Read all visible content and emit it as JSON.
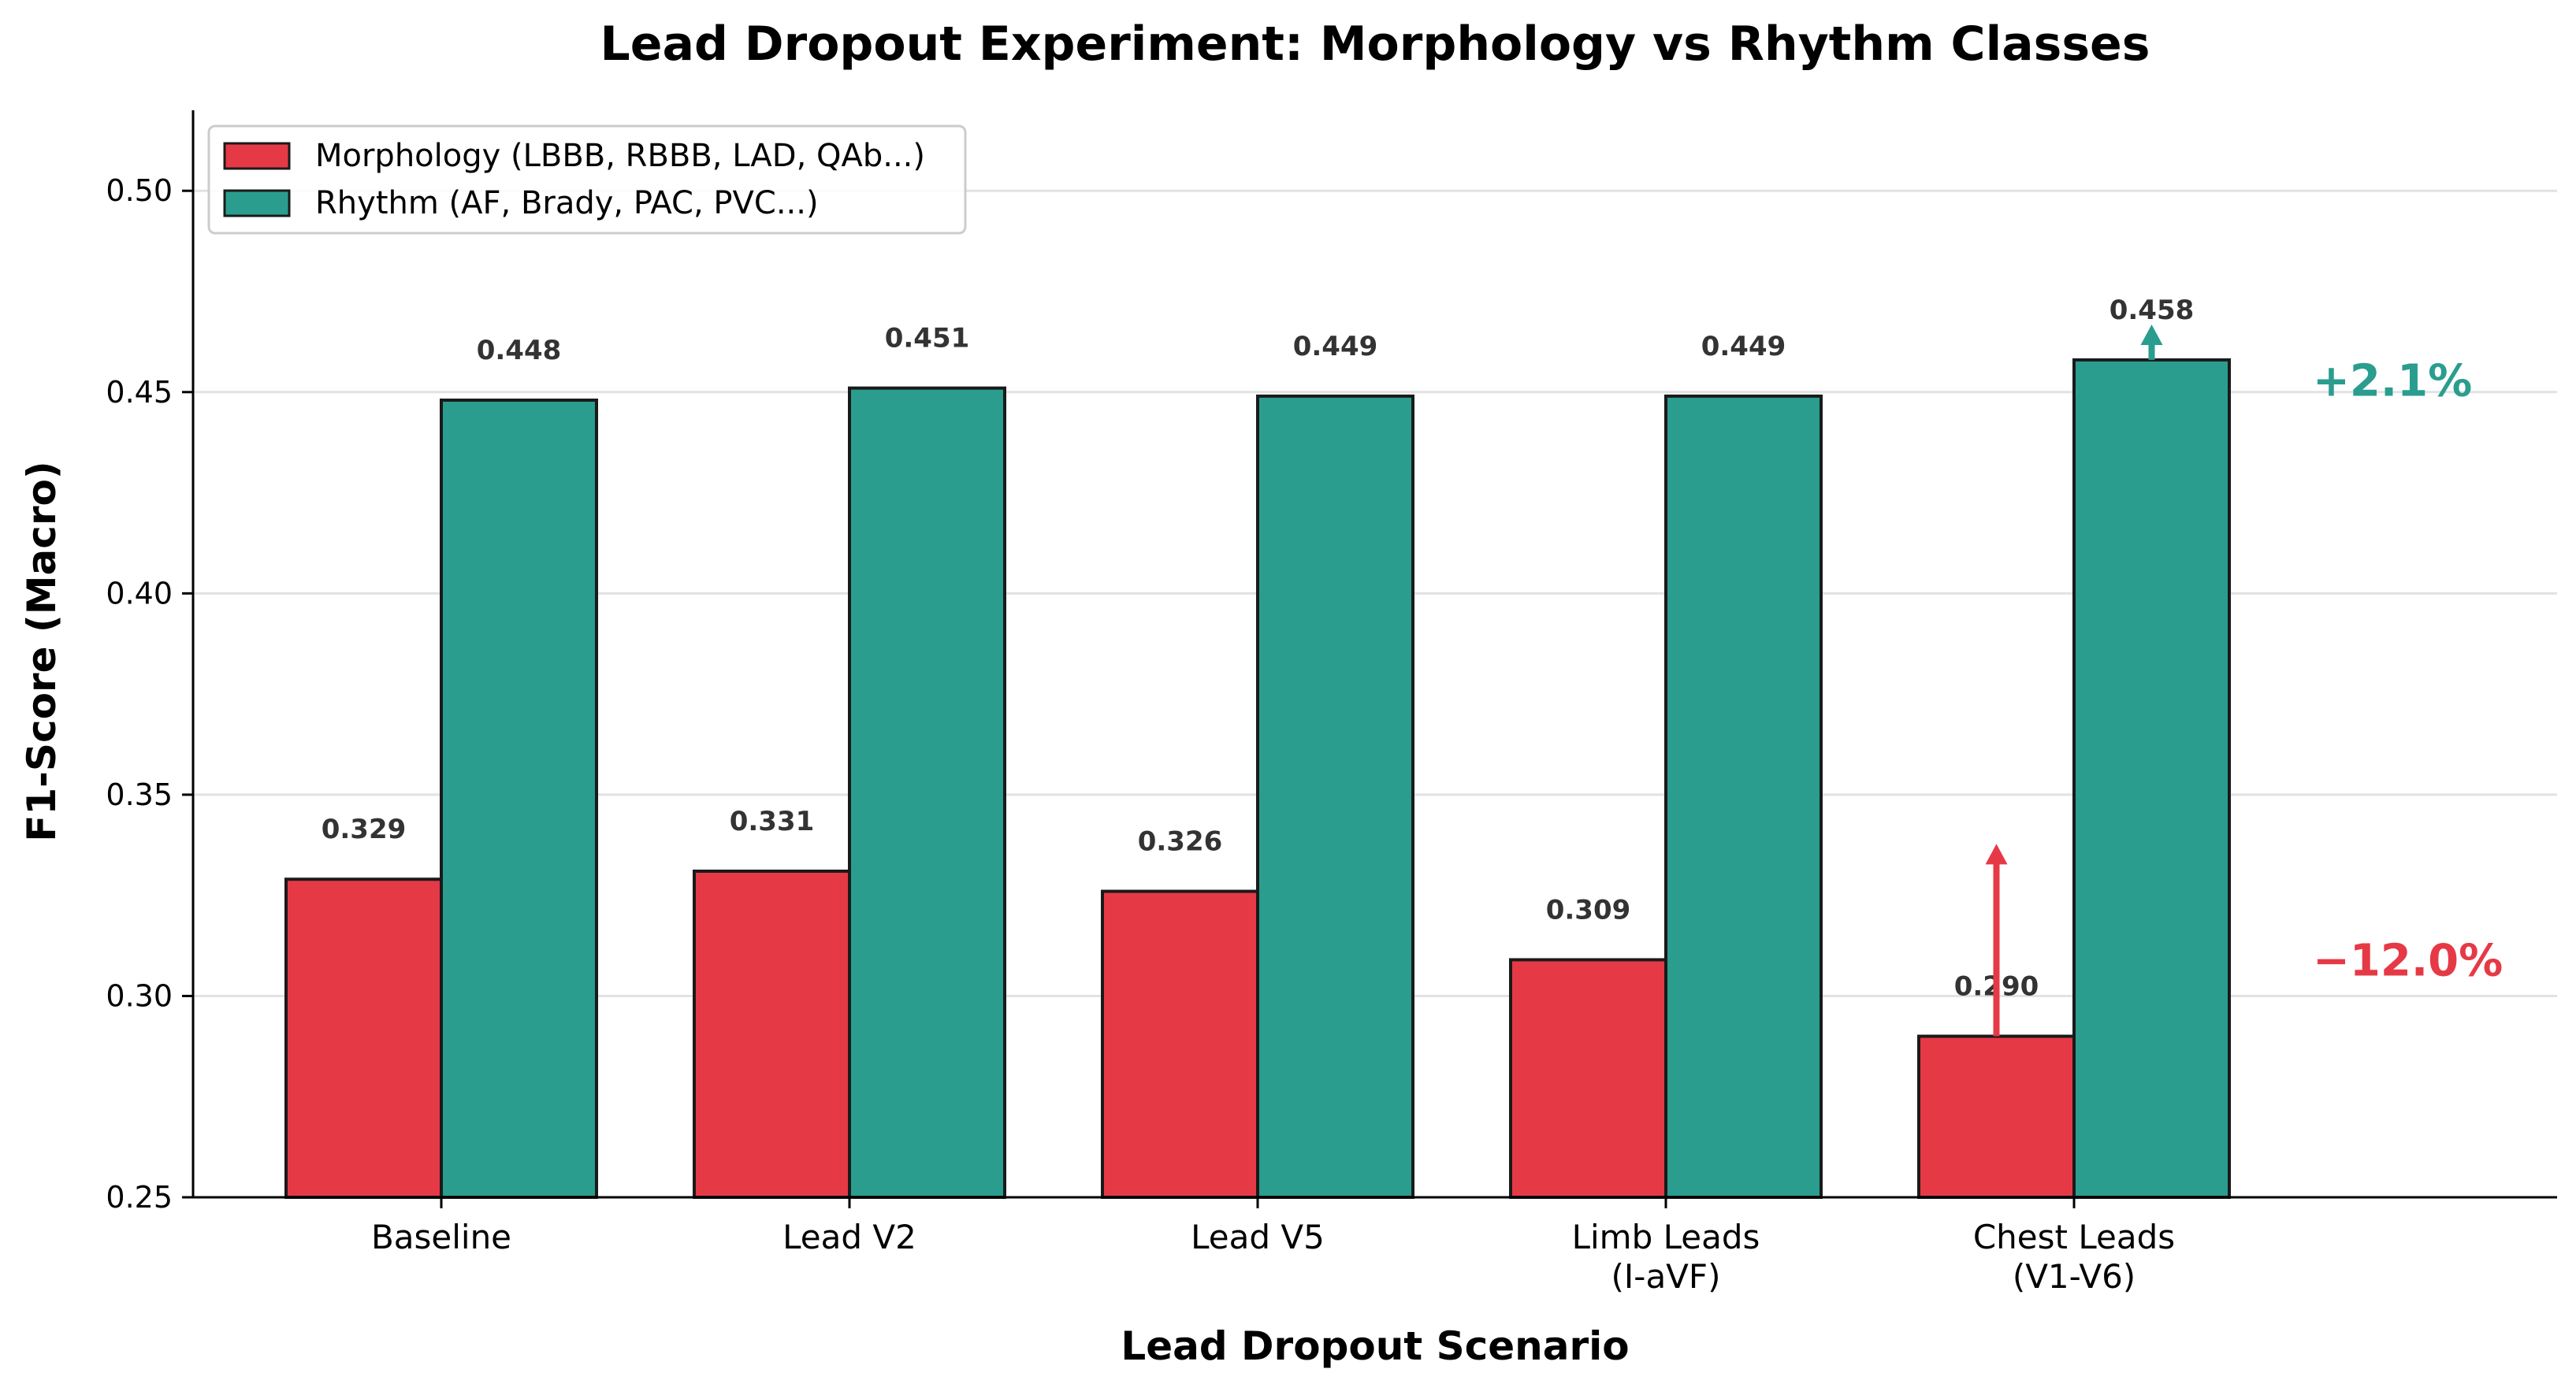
{
  "chart_data": {
    "type": "bar",
    "title": "Lead Dropout Experiment: Morphology vs Rhythm Classes",
    "xlabel": "Lead Dropout Scenario",
    "ylabel": "F1-Score (Macro)",
    "ylim": [
      0.25,
      0.52
    ],
    "yticks": [
      "0.25",
      "0.30",
      "0.35",
      "0.40",
      "0.45",
      "0.50"
    ],
    "grid": "horizontal",
    "legend_position": "top-left",
    "categories": [
      [
        "Baseline"
      ],
      [
        "Lead V2"
      ],
      [
        "Lead V5"
      ],
      [
        "Limb Leads",
        "(I-aVF)"
      ],
      [
        "Chest Leads",
        "(V1-V6)"
      ]
    ],
    "series": [
      {
        "name": "Morphology (LBBB, RBBB, LAD, QAb...)",
        "color": "#e63946",
        "values": [
          0.329,
          0.331,
          0.326,
          0.309,
          0.29
        ],
        "labels": [
          "0.329",
          "0.331",
          "0.326",
          "0.309",
          "0.290"
        ]
      },
      {
        "name": "Rhythm (AF, Brady, PAC, PVC...)",
        "color": "#2a9d8f",
        "values": [
          0.448,
          0.451,
          0.449,
          0.449,
          0.458
        ],
        "labels": [
          "0.448",
          "0.451",
          "0.449",
          "0.449",
          "0.458"
        ]
      }
    ],
    "annotations": [
      {
        "text": "+2.1%",
        "color": "#2a9d8f",
        "y": 0.453
      },
      {
        "text": "−12.0%",
        "color": "#e63946",
        "y": 0.309
      }
    ],
    "arrows": [
      {
        "series": 0,
        "category": 4,
        "from": 0.29,
        "to": 0.337,
        "color": "#e63946"
      },
      {
        "series": 1,
        "category": 4,
        "from": 0.458,
        "to": 0.466,
        "color": "#2a9d8f"
      }
    ]
  }
}
